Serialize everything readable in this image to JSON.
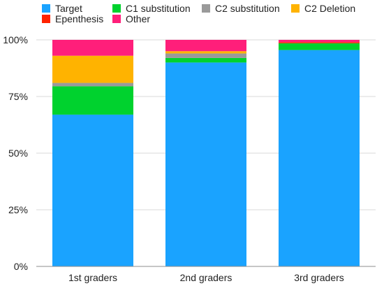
{
  "chart_data": {
    "type": "bar",
    "stacked": true,
    "percent": true,
    "title": "",
    "xlabel": "",
    "ylabel": "",
    "ylim": [
      0,
      100
    ],
    "yticks": [
      0,
      25,
      50,
      75,
      100
    ],
    "ytick_labels": [
      "0%",
      "25%",
      "50%",
      "75%",
      "100%"
    ],
    "grid": true,
    "legend_position": "top",
    "categories": [
      "1st graders",
      "2nd graders",
      "3rd graders"
    ],
    "series": [
      {
        "name": "Target",
        "color": "#1aa3ff",
        "values": [
          67,
          90,
          95.5
        ]
      },
      {
        "name": "C1 substitution",
        "color": "#00d22e",
        "values": [
          12.5,
          2,
          3
        ]
      },
      {
        "name": "C2 substitution",
        "color": "#9a9a9a",
        "values": [
          1.5,
          2,
          0
        ]
      },
      {
        "name": "C2 Deletion",
        "color": "#ffb300",
        "values": [
          12,
          1,
          0
        ]
      },
      {
        "name": "Epenthesis",
        "color": "#ff2200",
        "values": [
          0,
          0,
          0.5
        ]
      },
      {
        "name": "Other",
        "color": "#ff1f7a",
        "values": [
          7,
          5,
          1
        ]
      }
    ]
  }
}
